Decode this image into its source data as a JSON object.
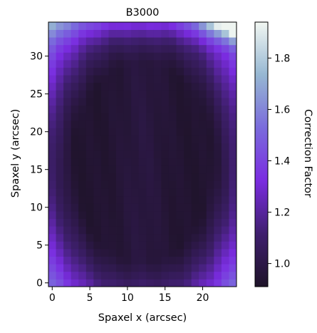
{
  "chart_data": {
    "type": "heatmap",
    "title": "B3000",
    "xlabel": "Spaxel x (arcsec)",
    "ylabel": "Spaxel y (arcsec)",
    "x_ticks": [
      "0",
      "5",
      "10",
      "15",
      "20"
    ],
    "y_ticks": [
      "0",
      "5",
      "10",
      "15",
      "20",
      "25",
      "30"
    ],
    "xlim": [
      -0.5,
      24.5
    ],
    "ylim": [
      -0.5,
      34.5
    ],
    "grid": false,
    "n_columns": 25,
    "n_rows": 35,
    "model_description": "Each pixel value approximated as base + elliptical-edge rise + top-corner brightening; value range 0.92-1.93",
    "colorbar": {
      "label": "Correction Factor",
      "ticks": [
        "1.0",
        "1.2",
        "1.4",
        "1.6",
        "1.8"
      ],
      "range": [
        0.91,
        1.94
      ],
      "colors": [
        "#1e1328",
        "#3f1f6e",
        "#7a2ce0",
        "#7a6bdc",
        "#96b7d2",
        "#f2f7f2"
      ]
    }
  }
}
